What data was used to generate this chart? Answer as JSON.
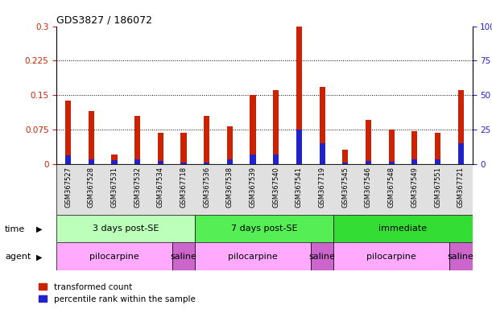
{
  "title": "GDS3827 / 186072",
  "samples": [
    "GSM367527",
    "GSM367528",
    "GSM367531",
    "GSM367532",
    "GSM367534",
    "GSM367718",
    "GSM367536",
    "GSM367538",
    "GSM367539",
    "GSM367540",
    "GSM367541",
    "GSM367719",
    "GSM367545",
    "GSM367546",
    "GSM367548",
    "GSM367549",
    "GSM367551",
    "GSM367721"
  ],
  "red_values": [
    0.138,
    0.115,
    0.02,
    0.105,
    0.068,
    0.068,
    0.105,
    0.082,
    0.15,
    0.16,
    0.3,
    0.167,
    0.03,
    0.095,
    0.075,
    0.072,
    0.068,
    0.16
  ],
  "blue_values": [
    0.018,
    0.01,
    0.008,
    0.01,
    0.006,
    0.003,
    0.003,
    0.01,
    0.02,
    0.02,
    0.075,
    0.045,
    0.003,
    0.006,
    0.005,
    0.01,
    0.01,
    0.045
  ],
  "ylim_left": [
    0,
    0.3
  ],
  "ylim_right": [
    0,
    100
  ],
  "yticks_left": [
    0,
    0.075,
    0.15,
    0.225,
    0.3
  ],
  "yticks_right": [
    0,
    25,
    50,
    75,
    100
  ],
  "ytick_labels_left": [
    "0",
    "0.075",
    "0.15",
    "0.225",
    "0.3"
  ],
  "ytick_labels_right": [
    "0",
    "25",
    "50",
    "75",
    "100%"
  ],
  "hlines": [
    0.075,
    0.15,
    0.225
  ],
  "red_color": "#CC2200",
  "blue_color": "#2222CC",
  "time_groups": [
    {
      "label": "3 days post-SE",
      "start": 0,
      "end": 5,
      "color": "#BBFFBB"
    },
    {
      "label": "7 days post-SE",
      "start": 6,
      "end": 11,
      "color": "#55EE55"
    },
    {
      "label": "immediate",
      "start": 12,
      "end": 17,
      "color": "#33DD33"
    }
  ],
  "agent_groups": [
    {
      "label": "pilocarpine",
      "start": 0,
      "end": 4,
      "color": "#FFAAFF"
    },
    {
      "label": "saline",
      "start": 5,
      "end": 5,
      "color": "#CC66CC"
    },
    {
      "label": "pilocarpine",
      "start": 6,
      "end": 10,
      "color": "#FFAAFF"
    },
    {
      "label": "saline",
      "start": 11,
      "end": 11,
      "color": "#CC66CC"
    },
    {
      "label": "pilocarpine",
      "start": 12,
      "end": 16,
      "color": "#FFAAFF"
    },
    {
      "label": "saline",
      "start": 17,
      "end": 17,
      "color": "#CC66CC"
    }
  ],
  "time_label": "time",
  "agent_label": "agent",
  "legend_red": "transformed count",
  "legend_blue": "percentile rank within the sample",
  "bar_width": 0.25,
  "bg_color": "#FFFFFF",
  "tick_color_left": "#CC2200",
  "tick_color_right": "#2222CC"
}
